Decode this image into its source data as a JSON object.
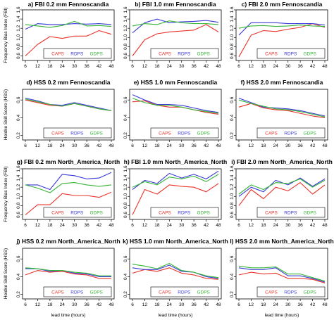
{
  "figure": {
    "xlabel": "lead time (hours)",
    "row_ylabels": [
      "Frequency Bias Index (FBI)",
      "Heidke Skill Score (HSS)",
      "Frequency Bias Index (FBI)",
      "Heidke Skill Score (HSS)"
    ]
  },
  "colors": {
    "CAPS": "#e8332a",
    "RDPS": "#3a3ad8",
    "GDPS": "#36b536"
  },
  "chart_data": [
    {
      "type": "line",
      "title": "a) FBI 0.2 mm Fennoscandia",
      "x": [
        6,
        12,
        18,
        24,
        30,
        36,
        42,
        48
      ],
      "xticks": [
        6,
        12,
        18,
        24,
        30,
        36,
        42,
        48
      ],
      "ylim": [
        0.5,
        1.6
      ],
      "yticks": [
        "0.6",
        "0.8",
        "1.0",
        "1.2",
        "1.4",
        "1.6"
      ],
      "legend": {
        "placement": "bottom-right",
        "entries": [
          "CAPS",
          "RDPS",
          "GDPS"
        ]
      },
      "series": [
        {
          "name": "CAPS",
          "values": [
            0.6,
            0.85,
            1.02,
            0.98,
            1.03,
            1.03,
            1.15,
            1.07
          ]
        },
        {
          "name": "RDPS",
          "values": [
            1.18,
            1.3,
            1.28,
            1.28,
            1.3,
            1.29,
            1.3,
            1.28
          ]
        },
        {
          "name": "GDPS",
          "values": [
            1.28,
            1.25,
            1.22,
            1.26,
            1.35,
            1.25,
            1.26,
            1.24
          ]
        }
      ]
    },
    {
      "type": "line",
      "title": "b) FBI 1.0 mm Fennoscandia",
      "x": [
        6,
        12,
        18,
        24,
        30,
        36,
        42,
        48
      ],
      "xticks": [
        6,
        12,
        18,
        24,
        30,
        36,
        42,
        48
      ],
      "ylim": [
        0.5,
        1.6
      ],
      "yticks": [
        "0.6",
        "0.8",
        "1.0",
        "1.2",
        "1.4",
        "1.6"
      ],
      "legend": {
        "placement": "bottom-right",
        "entries": [
          "CAPS",
          "RDPS",
          "GDPS"
        ]
      },
      "series": [
        {
          "name": "CAPS",
          "values": [
            0.6,
            0.95,
            1.08,
            1.12,
            1.14,
            1.16,
            1.28,
            1.12
          ]
        },
        {
          "name": "RDPS",
          "values": [
            1.1,
            1.32,
            1.4,
            1.32,
            1.34,
            1.35,
            1.37,
            1.33
          ]
        },
        {
          "name": "GDPS",
          "values": [
            1.25,
            1.3,
            1.28,
            1.36,
            1.32,
            1.3,
            1.3,
            1.28
          ]
        }
      ]
    },
    {
      "type": "line",
      "title": "c) FBI 2.0 mm Fennoscandia",
      "x": [
        6,
        12,
        18,
        24,
        30,
        36,
        42,
        48
      ],
      "xticks": [
        6,
        12,
        18,
        24,
        30,
        36,
        42,
        48
      ],
      "ylim": [
        0.5,
        1.6
      ],
      "yticks": [
        "0.6",
        "0.8",
        "1.0",
        "1.2",
        "1.4",
        "1.6"
      ],
      "legend": {
        "placement": "bottom-right",
        "entries": [
          "CAPS",
          "RDPS",
          "GDPS"
        ]
      },
      "series": [
        {
          "name": "CAPS",
          "values": [
            0.58,
            1.05,
            1.15,
            1.13,
            1.18,
            1.22,
            1.3,
            1.22
          ]
        },
        {
          "name": "RDPS",
          "values": [
            1.05,
            1.32,
            1.32,
            1.32,
            1.3,
            1.3,
            1.3,
            1.27
          ]
        },
        {
          "name": "GDPS",
          "values": [
            1.2,
            1.25,
            1.26,
            1.24,
            1.25,
            1.27,
            1.25,
            1.24
          ]
        }
      ]
    },
    {
      "type": "line",
      "title": "d) HSS 0.2 mm Fennoscandia",
      "x": [
        6,
        12,
        18,
        24,
        30,
        36,
        42,
        48
      ],
      "xticks": [
        6,
        12,
        18,
        24,
        30,
        36,
        42,
        48
      ],
      "ylim": [
        0.15,
        0.72
      ],
      "yticks": [
        "0.2",
        "0.4",
        "0.6"
      ],
      "legend": {
        "placement": "bottom-right",
        "entries": [
          "CAPS",
          "RDPS",
          "GDPS"
        ]
      },
      "series": [
        {
          "name": "CAPS",
          "values": [
            0.6,
            0.57,
            0.54,
            0.53,
            0.56,
            0.53,
            0.5,
            0.48
          ]
        },
        {
          "name": "RDPS",
          "values": [
            0.62,
            0.59,
            0.55,
            0.54,
            0.57,
            0.54,
            0.51,
            0.48
          ]
        },
        {
          "name": "GDPS",
          "values": [
            0.61,
            0.58,
            0.55,
            0.53,
            0.56,
            0.53,
            0.5,
            0.48
          ]
        }
      ]
    },
    {
      "type": "line",
      "title": "e) HSS 1.0 mm Fennoscandia",
      "x": [
        6,
        12,
        18,
        24,
        30,
        36,
        42,
        48
      ],
      "xticks": [
        6,
        12,
        18,
        24,
        30,
        36,
        42,
        48
      ],
      "ylim": [
        0.15,
        0.72
      ],
      "yticks": [
        "0.2",
        "0.4",
        "0.6"
      ],
      "legend": {
        "placement": "bottom-right",
        "entries": [
          "CAPS",
          "RDPS",
          "GDPS"
        ]
      },
      "series": [
        {
          "name": "CAPS",
          "values": [
            0.58,
            0.59,
            0.54,
            0.52,
            0.52,
            0.49,
            0.46,
            0.44
          ]
        },
        {
          "name": "RDPS",
          "values": [
            0.66,
            0.6,
            0.55,
            0.55,
            0.54,
            0.51,
            0.48,
            0.46
          ]
        },
        {
          "name": "GDPS",
          "values": [
            0.62,
            0.57,
            0.54,
            0.54,
            0.52,
            0.49,
            0.47,
            0.45
          ]
        }
      ]
    },
    {
      "type": "line",
      "title": "f) HSS 2.0 mm Fennoscandia",
      "x": [
        6,
        12,
        18,
        24,
        30,
        36,
        42,
        48
      ],
      "xticks": [
        6,
        12,
        18,
        24,
        30,
        36,
        42,
        48
      ],
      "ylim": [
        0.15,
        0.72
      ],
      "yticks": [
        "0.2",
        "0.4",
        "0.6"
      ],
      "legend": {
        "placement": "bottom-right",
        "entries": [
          "CAPS",
          "RDPS",
          "GDPS"
        ]
      },
      "series": [
        {
          "name": "CAPS",
          "values": [
            0.52,
            0.56,
            0.51,
            0.49,
            0.48,
            0.45,
            0.42,
            0.4
          ]
        },
        {
          "name": "RDPS",
          "values": [
            0.62,
            0.57,
            0.52,
            0.51,
            0.5,
            0.48,
            0.45,
            0.42
          ]
        },
        {
          "name": "GDPS",
          "values": [
            0.6,
            0.56,
            0.53,
            0.5,
            0.49,
            0.47,
            0.44,
            0.41
          ]
        }
      ]
    },
    {
      "type": "line",
      "title": "g) FBI 0.2 mm North_America_North",
      "x": [
        6,
        12,
        18,
        24,
        30,
        36,
        42,
        48
      ],
      "xticks": [
        6,
        12,
        18,
        24,
        30,
        36,
        42,
        48
      ],
      "ylim": [
        0.5,
        1.6
      ],
      "yticks": [
        "0.6",
        "0.8",
        "1.0",
        "1.2",
        "1.4",
        "1.6"
      ],
      "legend": {
        "placement": "bottom-right",
        "entries": [
          "CAPS",
          "RDPS",
          "GDPS"
        ]
      },
      "series": [
        {
          "name": "CAPS",
          "values": [
            0.6,
            0.82,
            0.82,
            1.06,
            1.02,
            1.02,
            0.98,
            1.09
          ]
        },
        {
          "name": "RDPS",
          "values": [
            1.25,
            1.25,
            1.15,
            1.48,
            1.45,
            1.38,
            1.4,
            1.52
          ]
        },
        {
          "name": "GDPS",
          "values": [
            1.25,
            1.18,
            1.08,
            1.28,
            1.3,
            1.25,
            1.22,
            1.25
          ]
        }
      ]
    },
    {
      "type": "line",
      "title": "h) FBI 1.0 mm North_America_North",
      "x": [
        6,
        12,
        18,
        24,
        30,
        36,
        42,
        48
      ],
      "xticks": [
        6,
        12,
        18,
        24,
        30,
        36,
        42,
        48
      ],
      "ylim": [
        0.5,
        1.6
      ],
      "yticks": [
        "0.6",
        "0.8",
        "1.0",
        "1.2",
        "1.4",
        "1.6"
      ],
      "legend": {
        "placement": "bottom-right",
        "entries": [
          "CAPS",
          "RDPS",
          "GDPS"
        ]
      },
      "series": [
        {
          "name": "CAPS",
          "values": [
            0.6,
            1.15,
            1.05,
            1.25,
            1.22,
            1.2,
            1.1,
            1.28
          ]
        },
        {
          "name": "RDPS",
          "values": [
            1.15,
            1.35,
            1.28,
            1.5,
            1.4,
            1.48,
            1.38,
            1.55
          ]
        },
        {
          "name": "GDPS",
          "values": [
            1.2,
            1.32,
            1.25,
            1.42,
            1.38,
            1.44,
            1.32,
            1.48
          ]
        }
      ]
    },
    {
      "type": "line",
      "title": "i) FBI 2.0 mm North_America_North",
      "x": [
        6,
        12,
        18,
        24,
        30,
        36,
        42,
        48
      ],
      "xticks": [
        6,
        12,
        18,
        24,
        30,
        36,
        42,
        48
      ],
      "ylim": [
        0.5,
        1.6
      ],
      "yticks": [
        "0.6",
        "0.8",
        "1.0",
        "1.2",
        "1.4",
        "1.6"
      ],
      "legend": {
        "placement": "bottom-right",
        "entries": [
          "CAPS",
          "RDPS",
          "GDPS"
        ]
      },
      "series": [
        {
          "name": "CAPS",
          "values": [
            0.8,
            1.15,
            0.95,
            1.2,
            1.12,
            1.3,
            1.05,
            1.25
          ]
        },
        {
          "name": "RDPS",
          "values": [
            1.0,
            1.2,
            1.1,
            1.35,
            1.25,
            1.4,
            1.22,
            1.38
          ]
        },
        {
          "name": "GDPS",
          "values": [
            1.05,
            1.25,
            1.15,
            1.3,
            1.28,
            1.38,
            1.2,
            1.35
          ]
        }
      ]
    },
    {
      "type": "line",
      "title": "j) HSS 0.2 mm North_America_North",
      "x": [
        6,
        12,
        18,
        24,
        30,
        36,
        42,
        48
      ],
      "xticks": [
        6,
        12,
        18,
        24,
        30,
        36,
        42,
        48
      ],
      "ylim": [
        0.15,
        0.72
      ],
      "yticks": [
        "0.2",
        "0.4",
        "0.6"
      ],
      "legend": {
        "placement": "bottom-right",
        "entries": [
          "CAPS",
          "RDPS",
          "GDPS"
        ]
      },
      "series": [
        {
          "name": "CAPS",
          "values": [
            0.42,
            0.47,
            0.45,
            0.46,
            0.43,
            0.42,
            0.38,
            0.38
          ]
        },
        {
          "name": "RDPS",
          "values": [
            0.49,
            0.49,
            0.46,
            0.47,
            0.44,
            0.43,
            0.4,
            0.4
          ]
        },
        {
          "name": "GDPS",
          "values": [
            0.5,
            0.49,
            0.47,
            0.47,
            0.45,
            0.44,
            0.41,
            0.41
          ]
        }
      ]
    },
    {
      "type": "line",
      "title": "k) HSS 1.0 mm North_America_North",
      "x": [
        6,
        12,
        18,
        24,
        30,
        36,
        42,
        48
      ],
      "xticks": [
        6,
        12,
        18,
        24,
        30,
        36,
        42,
        48
      ],
      "ylim": [
        0.15,
        0.72
      ],
      "yticks": [
        "0.2",
        "0.4",
        "0.6"
      ],
      "legend": {
        "placement": "bottom-right",
        "entries": [
          "CAPS",
          "RDPS",
          "GDPS"
        ]
      },
      "series": [
        {
          "name": "CAPS",
          "values": [
            0.44,
            0.48,
            0.46,
            0.5,
            0.44,
            0.42,
            0.38,
            0.37
          ]
        },
        {
          "name": "RDPS",
          "values": [
            0.5,
            0.48,
            0.48,
            0.53,
            0.46,
            0.45,
            0.4,
            0.38
          ]
        },
        {
          "name": "GDPS",
          "values": [
            0.54,
            0.52,
            0.49,
            0.55,
            0.47,
            0.45,
            0.41,
            0.39
          ]
        }
      ]
    },
    {
      "type": "line",
      "title": "l) HSS 2.0 mm North_America_North",
      "x": [
        6,
        12,
        18,
        24,
        30,
        36,
        42,
        48
      ],
      "xticks": [
        6,
        12,
        18,
        24,
        30,
        36,
        42,
        48
      ],
      "ylim": [
        0.15,
        0.72
      ],
      "yticks": [
        "0.2",
        "0.4",
        "0.6"
      ],
      "legend": {
        "placement": "bottom-right",
        "entries": [
          "CAPS",
          "RDPS",
          "GDPS"
        ]
      },
      "series": [
        {
          "name": "CAPS",
          "values": [
            0.42,
            0.45,
            0.43,
            0.44,
            0.38,
            0.38,
            0.37,
            0.33
          ]
        },
        {
          "name": "RDPS",
          "values": [
            0.5,
            0.48,
            0.48,
            0.5,
            0.41,
            0.41,
            0.38,
            0.34
          ]
        },
        {
          "name": "GDPS",
          "values": [
            0.52,
            0.5,
            0.5,
            0.51,
            0.43,
            0.43,
            0.39,
            0.35
          ]
        }
      ]
    }
  ]
}
